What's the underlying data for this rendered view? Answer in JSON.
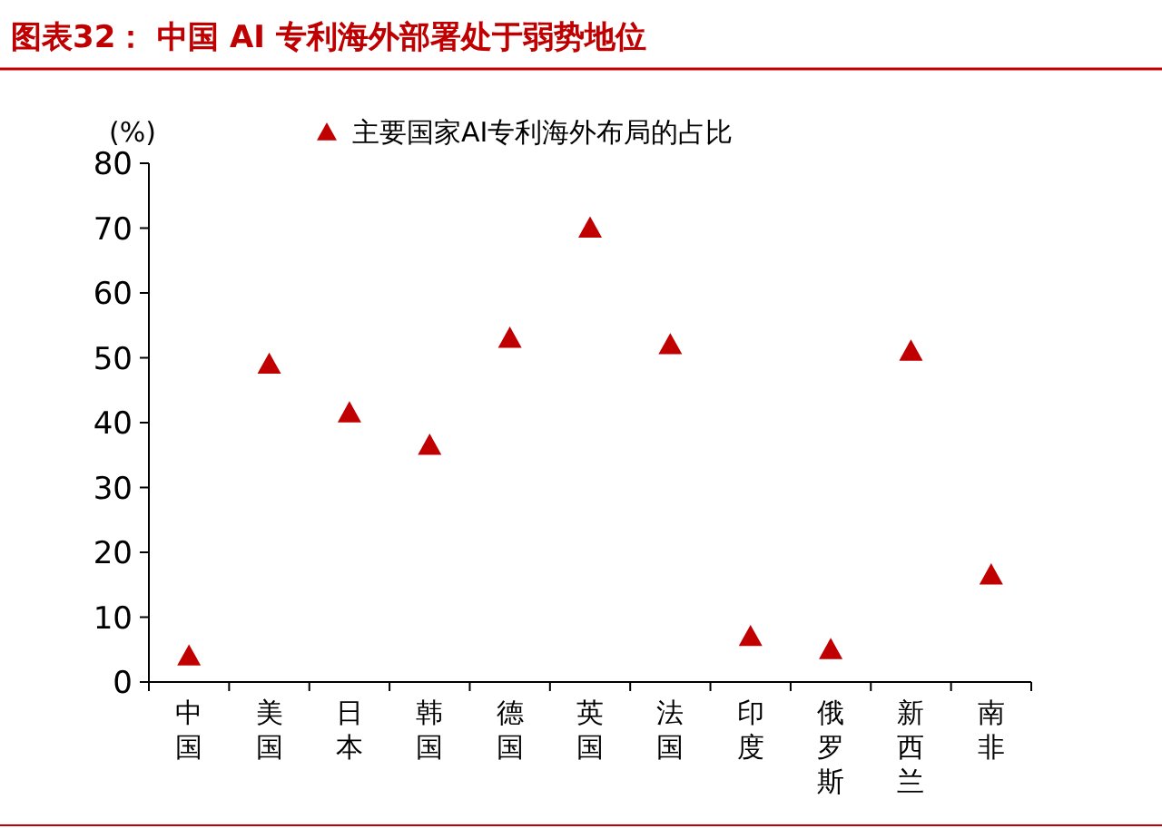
{
  "chart_data": {
    "type": "scatter",
    "title": "图表32：  中国 AI 专利海外部署处于弱势地位",
    "ylabel": "(%)",
    "categories": [
      "中国",
      "美国",
      "日本",
      "韩国",
      "德国",
      "英国",
      "法国",
      "印度",
      "俄罗斯",
      "新西兰",
      "南非"
    ],
    "series": [
      {
        "name": "主要国家AI专利海外布局的占比",
        "color": "#c00000",
        "values": [
          4,
          49,
          41.5,
          36.5,
          53,
          70,
          52,
          7,
          5,
          51,
          16.5
        ]
      }
    ],
    "ylim": [
      0,
      80
    ],
    "yticks": [
      0,
      10,
      20,
      30,
      40,
      50,
      60,
      70,
      80
    ],
    "marker": "triangle",
    "legend": "top",
    "grid": false
  }
}
